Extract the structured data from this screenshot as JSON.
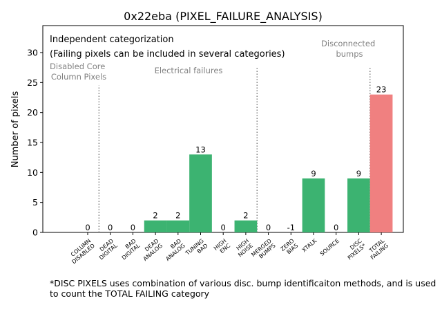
{
  "chart_data": {
    "type": "bar",
    "title": "0x22eba (PIXEL_FAILURE_ANALYSIS)",
    "xlabel": "",
    "ylabel": "Number of pixels",
    "ylim": [
      0,
      34.5
    ],
    "yticks": [
      0,
      5,
      10,
      15,
      20,
      25,
      30
    ],
    "grid": false,
    "categories": [
      "COLUMN DISABLED",
      "DEAD DIGITAL",
      "BAD DIGITAL",
      "DEAD ANALOG",
      "BAD ANALOG",
      "TUNING BAD",
      "HIGH ENC",
      "HIGH NOISE",
      "MERGED BUMPS",
      "ZERO BIAS",
      "XTALK",
      "SOURCE",
      "DISC PIXELS*",
      "TOTAL FAILING"
    ],
    "tick_labels": [
      [
        "COLUMN",
        "DISABLED"
      ],
      [
        "DEAD",
        "DIGITAL"
      ],
      [
        "BAD",
        "DIGITAL"
      ],
      [
        "DEAD",
        "ANALOG"
      ],
      [
        "BAD",
        "ANALOG"
      ],
      [
        "TUNING",
        "BAD"
      ],
      [
        "HIGH",
        "ENC"
      ],
      [
        "HIGH",
        "NOISE"
      ],
      [
        "MERGED",
        "BUMPS"
      ],
      [
        "ZERO",
        "BIAS"
      ],
      [
        "XTALK"
      ],
      [
        "SOURCE"
      ],
      [
        "DISC",
        "PIXELS*"
      ],
      [
        "TOTAL",
        "FAILING"
      ]
    ],
    "values": [
      0,
      0,
      0,
      2,
      2,
      13,
      0,
      2,
      0,
      -1,
      9,
      0,
      9,
      23
    ],
    "value_labels": [
      "0",
      "0",
      "0",
      "2",
      "2",
      "13",
      "0",
      "2",
      "0",
      "-1",
      "9",
      "0",
      "9",
      "23"
    ],
    "highlight_index": 13,
    "separators": [
      {
        "after_index": 0,
        "top_value": 24.5
      },
      {
        "after_index": 7,
        "top_value": 27.5
      },
      {
        "after_index": 12,
        "top_value": 27.5
      }
    ],
    "group_labels": [
      {
        "lines": [
          "Disabled Core",
          "Column Pixels"
        ]
      },
      {
        "lines": [
          "Electrical failures"
        ]
      },
      {
        "lines": [
          "Disconnected",
          "bumps"
        ]
      }
    ],
    "annotation_lines": [
      "Independent categorization",
      "(Failing pixels can be included in several categories)"
    ]
  },
  "colors": {
    "bar": "#3cb371",
    "highlight": "#f08080",
    "separator": "#808080",
    "group_label": "#808080",
    "text": "#000000"
  },
  "footnote": {
    "line1": "*DISC PIXELS uses combination of various disc. bump identificaiton methods, and is used",
    "line2": "to count the TOTAL FAILING category"
  }
}
